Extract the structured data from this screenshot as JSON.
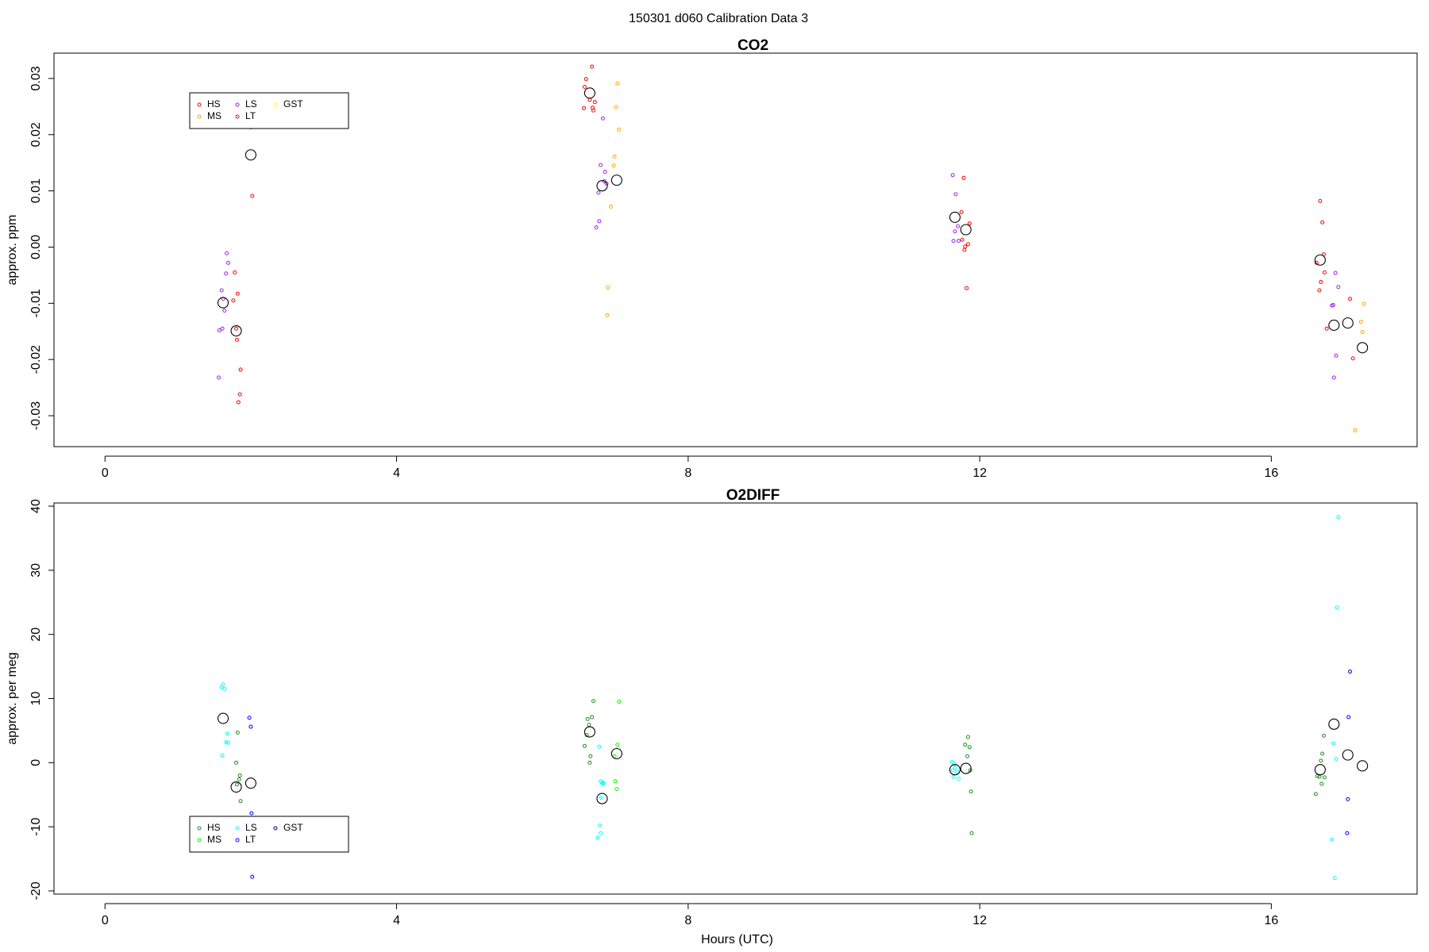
{
  "figure_title": "150301   d060   Calibration Data 3",
  "chart_data": [
    {
      "type": "scatter",
      "title": "CO2",
      "xlabel": "",
      "ylabel": "approx. ppm",
      "xlim": [
        -0.7,
        18.0
      ],
      "ylim": [
        -0.0355,
        0.0345
      ],
      "xticks": [
        0,
        4,
        8,
        12,
        16
      ],
      "yticks": [
        -0.03,
        -0.02,
        -0.01,
        0.0,
        0.01,
        0.02,
        0.03
      ],
      "ytick_labels": [
        "-0.03",
        "-0.02",
        "-0.01",
        "0.00",
        "0.01",
        "0.02",
        "0.03"
      ],
      "grid": false,
      "legend": {
        "placement": "top-left",
        "entries": [
          {
            "name": "HS",
            "color": "#ff0000"
          },
          {
            "name": "MS",
            "color": "#ffa500"
          },
          {
            "name": "LS",
            "color": "#a020f0"
          },
          {
            "name": "LT",
            "color": "#b22222"
          },
          {
            "name": "GST",
            "color": "#ffff00"
          }
        ]
      },
      "series": [
        {
          "name": "HS",
          "color": "#ff0000",
          "points": [
            [
              1.78,
              -0.0045
            ],
            [
              1.76,
              -0.0095
            ],
            [
              1.82,
              -0.0083
            ],
            [
              1.8,
              -0.0145
            ],
            [
              1.81,
              -0.0165
            ],
            [
              1.86,
              -0.0218
            ],
            [
              1.85,
              -0.0262
            ],
            [
              1.83,
              -0.0276
            ],
            [
              2.0,
              0.0213
            ],
            [
              2.02,
              0.0091
            ],
            [
              6.68,
              0.0321
            ],
            [
              6.6,
              0.0299
            ],
            [
              6.58,
              0.0285
            ],
            [
              6.57,
              0.0247
            ],
            [
              6.65,
              0.0262
            ],
            [
              6.72,
              0.0258
            ],
            [
              6.7,
              0.0243
            ],
            [
              6.69,
              0.0248
            ],
            [
              11.78,
              0.0123
            ],
            [
              11.75,
              0.0062
            ],
            [
              11.86,
              0.0042
            ],
            [
              11.76,
              0.0013
            ],
            [
              11.84,
              0.0005
            ],
            [
              11.8,
              0.0001
            ],
            [
              11.79,
              -0.0005
            ],
            [
              11.82,
              -0.0073
            ],
            [
              16.67,
              0.0082
            ],
            [
              16.7,
              0.0044
            ],
            [
              16.72,
              -0.0013
            ],
            [
              16.62,
              -0.0028
            ],
            [
              16.73,
              -0.0045
            ],
            [
              16.68,
              -0.0062
            ],
            [
              16.66,
              -0.0077
            ],
            [
              16.76,
              -0.0145
            ],
            [
              17.08,
              -0.0092
            ],
            [
              17.12,
              -0.0198
            ]
          ]
        },
        {
          "name": "MS",
          "color": "#ffa500",
          "points": [
            [
              7.03,
              0.0291
            ],
            [
              7.01,
              0.0249
            ],
            [
              7.05,
              0.0209
            ],
            [
              6.99,
              0.0161
            ],
            [
              6.98,
              0.0145
            ],
            [
              6.94,
              0.0072
            ],
            [
              6.9,
              -0.0072
            ],
            [
              6.89,
              -0.0121
            ],
            [
              17.27,
              -0.0101
            ],
            [
              17.23,
              -0.0133
            ],
            [
              17.25,
              -0.0151
            ],
            [
              17.15,
              -0.0326
            ]
          ]
        },
        {
          "name": "LS",
          "color": "#a020f0",
          "points": [
            [
              1.67,
              -0.0011
            ],
            [
              1.69,
              -0.0028
            ],
            [
              1.66,
              -0.0047
            ],
            [
              1.6,
              -0.0077
            ],
            [
              1.62,
              -0.0092
            ],
            [
              1.64,
              -0.0113
            ],
            [
              1.61,
              -0.0145
            ],
            [
              1.57,
              -0.0148
            ],
            [
              1.56,
              -0.0232
            ],
            [
              6.83,
              0.0229
            ],
            [
              6.8,
              0.0146
            ],
            [
              6.86,
              0.0134
            ],
            [
              6.85,
              0.0117
            ],
            [
              6.88,
              0.0113
            ],
            [
              6.77,
              0.0097
            ],
            [
              6.78,
              0.0046
            ],
            [
              6.74,
              0.0035
            ],
            [
              11.63,
              0.0128
            ],
            [
              11.67,
              0.0094
            ],
            [
              11.7,
              0.0037
            ],
            [
              11.66,
              0.0028
            ],
            [
              11.71,
              0.0011
            ],
            [
              11.64,
              0.0011
            ],
            [
              16.88,
              -0.0046
            ],
            [
              16.92,
              -0.0071
            ],
            [
              16.85,
              -0.0103
            ],
            [
              16.83,
              -0.0104
            ],
            [
              16.89,
              -0.0193
            ],
            [
              16.86,
              -0.0232
            ]
          ]
        },
        {
          "name": "LT",
          "color": "#b22222",
          "points": []
        },
        {
          "name": "GST",
          "color": "#ffff00",
          "points": []
        },
        {
          "name": "mean",
          "color": "#000000",
          "points": [
            [
              1.62,
              -0.0099
            ],
            [
              1.8,
              -0.0149
            ],
            [
              2.0,
              0.0164
            ],
            [
              6.65,
              0.0274
            ],
            [
              6.82,
              0.0109
            ],
            [
              7.02,
              0.0119
            ],
            [
              11.66,
              0.0053
            ],
            [
              11.81,
              0.0031
            ],
            [
              16.67,
              -0.0023
            ],
            [
              16.86,
              -0.0139
            ],
            [
              17.05,
              -0.0135
            ],
            [
              17.25,
              -0.0179
            ]
          ]
        }
      ]
    },
    {
      "type": "scatter",
      "title": "O2DIFF",
      "xlabel": "Hours (UTC)",
      "ylabel": "approx. per meg",
      "xlim": [
        -0.7,
        18.0
      ],
      "ylim": [
        -20.5,
        40.5
      ],
      "xticks": [
        0,
        4,
        8,
        12,
        16
      ],
      "yticks": [
        -20,
        -10,
        0,
        10,
        20,
        30,
        40
      ],
      "ytick_labels": [
        "-20",
        "-10",
        "0",
        "10",
        "20",
        "30",
        "40"
      ],
      "grid": false,
      "legend": {
        "placement": "bottom-left",
        "entries": [
          {
            "name": "HS",
            "color": "#228b22"
          },
          {
            "name": "MS",
            "color": "#00ff00"
          },
          {
            "name": "LS",
            "color": "#00ffff"
          },
          {
            "name": "LT",
            "color": "#0000ff"
          },
          {
            "name": "GST",
            "color": "#00008b"
          }
        ]
      },
      "series": [
        {
          "name": "HS",
          "color": "#228b22",
          "points": [
            [
              1.82,
              4.7
            ],
            [
              1.8,
              0.0
            ],
            [
              1.85,
              -2.0
            ],
            [
              1.84,
              -2.6
            ],
            [
              1.81,
              -3.4
            ],
            [
              1.86,
              -6.0
            ],
            [
              6.7,
              9.6
            ],
            [
              6.68,
              7.1
            ],
            [
              6.62,
              6.8
            ],
            [
              6.64,
              5.9
            ],
            [
              6.61,
              4.3
            ],
            [
              6.58,
              2.6
            ],
            [
              6.66,
              1.0
            ],
            [
              6.65,
              0.0
            ],
            [
              11.84,
              4.0
            ],
            [
              11.8,
              2.8
            ],
            [
              11.86,
              2.4
            ],
            [
              11.83,
              1.0
            ],
            [
              11.87,
              -1.2
            ],
            [
              11.88,
              -4.5
            ],
            [
              11.89,
              -11.0
            ],
            [
              16.72,
              4.2
            ],
            [
              16.7,
              1.4
            ],
            [
              16.68,
              0.3
            ],
            [
              16.63,
              -2.1
            ],
            [
              16.66,
              -2.2
            ],
            [
              16.73,
              -2.3
            ],
            [
              16.69,
              -3.3
            ],
            [
              16.61,
              -4.9
            ]
          ]
        },
        {
          "name": "MS",
          "color": "#00ff00",
          "points": [
            [
              7.05,
              9.5
            ],
            [
              7.03,
              2.8
            ],
            [
              6.99,
              1.0
            ],
            [
              7.0,
              -2.9
            ],
            [
              7.02,
              -4.1
            ]
          ]
        },
        {
          "name": "LS",
          "color": "#00ffff",
          "points": [
            [
              1.6,
              11.8
            ],
            [
              1.62,
              12.2
            ],
            [
              1.64,
              11.5
            ],
            [
              1.68,
              4.5
            ],
            [
              1.66,
              3.2
            ],
            [
              1.69,
              3.1
            ],
            [
              1.61,
              1.1
            ],
            [
              6.78,
              2.5
            ],
            [
              6.8,
              -2.9
            ],
            [
              6.83,
              -3.1
            ],
            [
              6.82,
              -3.2
            ],
            [
              6.84,
              -3.3
            ],
            [
              6.81,
              -5.5
            ],
            [
              6.79,
              -9.8
            ],
            [
              6.76,
              -11.7
            ],
            [
              6.8,
              -11.0
            ],
            [
              11.62,
              0.1
            ],
            [
              11.65,
              -0.2
            ],
            [
              11.66,
              -0.8
            ],
            [
              11.63,
              -1.2
            ],
            [
              11.69,
              -1.5
            ],
            [
              11.64,
              -2.2
            ],
            [
              11.71,
              -2.5
            ],
            [
              16.92,
              38.3
            ],
            [
              16.9,
              24.2
            ],
            [
              16.85,
              3.0
            ],
            [
              16.89,
              0.6
            ],
            [
              16.83,
              -12.0
            ],
            [
              16.87,
              -18.0
            ]
          ]
        },
        {
          "name": "LT",
          "color": "#0000ff",
          "points": [
            [
              1.98,
              7.0
            ],
            [
              2.0,
              5.6
            ],
            [
              2.01,
              -7.9
            ],
            [
              2.02,
              -17.8
            ],
            [
              17.08,
              14.2
            ],
            [
              17.06,
              7.1
            ],
            [
              17.05,
              -5.7
            ],
            [
              17.04,
              -11.0
            ]
          ]
        },
        {
          "name": "GST",
          "color": "#00008b",
          "points": []
        },
        {
          "name": "mean",
          "color": "#000000",
          "points": [
            [
              1.62,
              6.9
            ],
            [
              1.8,
              -3.8
            ],
            [
              2.0,
              -3.2
            ],
            [
              6.65,
              4.8
            ],
            [
              6.82,
              -5.6
            ],
            [
              7.02,
              1.4
            ],
            [
              11.66,
              -1.1
            ],
            [
              11.81,
              -0.9
            ],
            [
              16.67,
              -1.1
            ],
            [
              16.86,
              6.0
            ],
            [
              17.05,
              1.2
            ],
            [
              17.25,
              -0.5
            ]
          ]
        }
      ]
    }
  ]
}
